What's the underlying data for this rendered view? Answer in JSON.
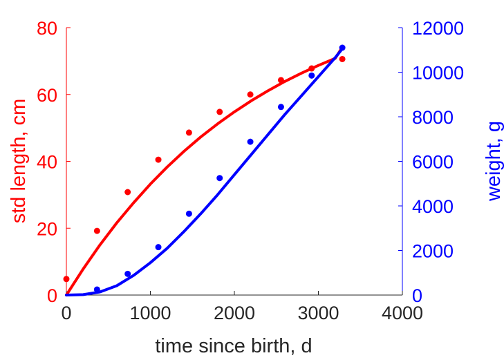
{
  "chart_data": {
    "type": "scatter",
    "x_axis": {
      "label": "time since birth, d",
      "range": [
        0,
        4000
      ],
      "ticks": [
        0,
        1000,
        2000,
        3000,
        4000
      ],
      "tick_labels": [
        "0",
        "1000",
        "2000",
        "3000",
        "4000"
      ]
    },
    "left_axis": {
      "label": "std length, cm",
      "color": "#ff0000",
      "range": [
        0,
        80
      ],
      "ticks": [
        0,
        20,
        40,
        60,
        80
      ],
      "tick_labels": [
        "0",
        "20",
        "40",
        "60",
        "80"
      ]
    },
    "right_axis": {
      "label": "weight, g",
      "color": "#0000ff",
      "range": [
        0,
        12000
      ],
      "ticks": [
        0,
        2000,
        4000,
        6000,
        8000,
        10000,
        12000
      ],
      "tick_labels": [
        "0",
        "2000",
        "4000",
        "6000",
        "8000",
        "10000",
        "12000"
      ]
    },
    "series": [
      {
        "axis": "left",
        "color": "#ff0000",
        "points": [
          [
            0,
            4.8
          ],
          [
            365,
            19.2
          ],
          [
            730,
            30.8
          ],
          [
            1095,
            40.5
          ],
          [
            1460,
            48.6
          ],
          [
            1825,
            54.8
          ],
          [
            2190,
            60.0
          ],
          [
            2555,
            64.3
          ],
          [
            2920,
            67.8
          ],
          [
            3285,
            70.6
          ]
        ],
        "fit": [
          [
            0,
            0
          ],
          [
            200,
            7.8
          ],
          [
            400,
            15.0
          ],
          [
            600,
            21.6
          ],
          [
            800,
            27.6
          ],
          [
            1000,
            33.2
          ],
          [
            1200,
            38.3
          ],
          [
            1400,
            43.0
          ],
          [
            1600,
            47.3
          ],
          [
            1800,
            51.2
          ],
          [
            2000,
            54.8
          ],
          [
            2200,
            58.1
          ],
          [
            2400,
            61.1
          ],
          [
            2600,
            63.9
          ],
          [
            2800,
            66.4
          ],
          [
            3000,
            68.7
          ],
          [
            3200,
            70.8
          ],
          [
            3285,
            74.1
          ]
        ]
      },
      {
        "axis": "right",
        "color": "#0000ff",
        "points": [
          [
            365,
            250
          ],
          [
            730,
            950
          ],
          [
            1095,
            2150
          ],
          [
            1460,
            3650
          ],
          [
            1825,
            5250
          ],
          [
            2190,
            6880
          ],
          [
            2555,
            8440
          ],
          [
            2920,
            9850
          ],
          [
            3285,
            11100
          ]
        ],
        "fit": [
          [
            0,
            0
          ],
          [
            200,
            20
          ],
          [
            400,
            140
          ],
          [
            600,
            420
          ],
          [
            800,
            880
          ],
          [
            1000,
            1450
          ],
          [
            1200,
            2100
          ],
          [
            1400,
            2850
          ],
          [
            1600,
            3650
          ],
          [
            1800,
            4500
          ],
          [
            2000,
            5400
          ],
          [
            2200,
            6300
          ],
          [
            2400,
            7200
          ],
          [
            2600,
            8100
          ],
          [
            2800,
            8950
          ],
          [
            3000,
            9800
          ],
          [
            3200,
            10650
          ],
          [
            3285,
            11050
          ]
        ]
      }
    ]
  }
}
